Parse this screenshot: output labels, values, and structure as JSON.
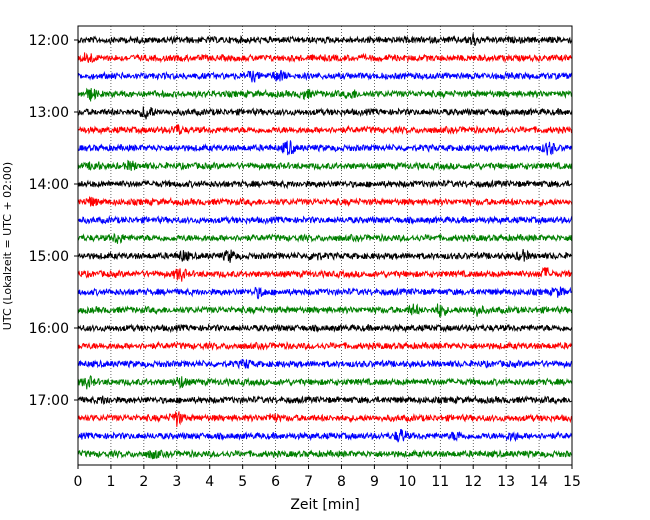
{
  "chart_data": {
    "type": "line",
    "title": "",
    "xlabel": "Zeit  [min]",
    "ylabel": "UTC (Lokalzeit = UTC + 02:00)",
    "xlim": [
      0,
      15
    ],
    "x_ticks": [
      0,
      1,
      2,
      3,
      4,
      5,
      6,
      7,
      8,
      9,
      10,
      11,
      12,
      13,
      14,
      15
    ],
    "y_tick_labels": [
      "12:00",
      "13:00",
      "14:00",
      "15:00",
      "16:00",
      "17:00"
    ],
    "trace_interval_min": 15,
    "vertical_grid": "dotted",
    "series": [
      {
        "start": "12:00",
        "color": "#000000",
        "events": [
          {
            "t": 12.0,
            "amp": 3
          }
        ]
      },
      {
        "start": "12:15",
        "color": "#ff0000",
        "events": [
          {
            "t": 0.3,
            "amp": 3
          }
        ]
      },
      {
        "start": "12:30",
        "color": "#0000ff",
        "events": [
          {
            "t": 5.3,
            "amp": 2.5
          },
          {
            "t": 6.1,
            "amp": 3
          }
        ]
      },
      {
        "start": "12:45",
        "color": "#008000",
        "events": [
          {
            "t": 0.4,
            "amp": 3
          },
          {
            "t": 6.9,
            "amp": 2
          },
          {
            "t": 8.3,
            "amp": 2
          }
        ]
      },
      {
        "start": "13:00",
        "color": "#000000",
        "events": [
          {
            "t": 2.1,
            "amp": 4
          }
        ]
      },
      {
        "start": "13:15",
        "color": "#ff0000",
        "events": [
          {
            "t": 3.0,
            "amp": 2.5
          }
        ]
      },
      {
        "start": "13:30",
        "color": "#0000ff",
        "events": [
          {
            "t": 6.4,
            "amp": 4
          },
          {
            "t": 14.3,
            "amp": 3.5
          }
        ]
      },
      {
        "start": "13:45",
        "color": "#008000",
        "events": [
          {
            "t": 0.5,
            "amp": 2
          },
          {
            "t": 1.6,
            "amp": 2
          }
        ]
      },
      {
        "start": "14:00",
        "color": "#000000",
        "events": []
      },
      {
        "start": "14:15",
        "color": "#ff0000",
        "events": [
          {
            "t": 0.4,
            "amp": 2
          }
        ]
      },
      {
        "start": "14:30",
        "color": "#0000ff",
        "events": []
      },
      {
        "start": "14:45",
        "color": "#008000",
        "events": [
          {
            "t": 1.2,
            "amp": 2.5
          }
        ]
      },
      {
        "start": "15:00",
        "color": "#000000",
        "events": [
          {
            "t": 3.2,
            "amp": 2.5
          },
          {
            "t": 4.6,
            "amp": 3
          },
          {
            "t": 7.2,
            "amp": 2
          },
          {
            "t": 13.5,
            "amp": 2.5
          }
        ]
      },
      {
        "start": "15:15",
        "color": "#ff0000",
        "events": [
          {
            "t": 3.1,
            "amp": 3.5
          },
          {
            "t": 14.2,
            "amp": 3
          }
        ]
      },
      {
        "start": "15:30",
        "color": "#0000ff",
        "events": [
          {
            "t": 5.5,
            "amp": 2.5
          },
          {
            "t": 14.6,
            "amp": 2
          }
        ]
      },
      {
        "start": "15:45",
        "color": "#008000",
        "events": [
          {
            "t": 10.2,
            "amp": 2.5
          },
          {
            "t": 11.0,
            "amp": 3.5
          },
          {
            "t": 12.1,
            "amp": 2.5
          }
        ]
      },
      {
        "start": "16:00",
        "color": "#000000",
        "events": []
      },
      {
        "start": "16:15",
        "color": "#ff0000",
        "events": []
      },
      {
        "start": "16:30",
        "color": "#0000ff",
        "events": [
          {
            "t": 5.1,
            "amp": 2
          }
        ]
      },
      {
        "start": "16:45",
        "color": "#008000",
        "events": [
          {
            "t": 0.3,
            "amp": 3
          },
          {
            "t": 3.1,
            "amp": 3
          }
        ]
      },
      {
        "start": "17:00",
        "color": "#000000",
        "events": [
          {
            "t": 0.8,
            "amp": 1.5
          }
        ]
      },
      {
        "start": "17:15",
        "color": "#ff0000",
        "events": [
          {
            "t": 3.0,
            "amp": 4
          },
          {
            "t": 5.9,
            "amp": 2
          }
        ]
      },
      {
        "start": "17:30",
        "color": "#0000ff",
        "events": [
          {
            "t": 9.8,
            "amp": 3.5
          },
          {
            "t": 11.5,
            "amp": 2
          },
          {
            "t": 13.2,
            "amp": 2
          }
        ]
      },
      {
        "start": "17:45",
        "color": "#008000",
        "events": [
          {
            "t": 2.3,
            "amp": 2
          }
        ]
      }
    ]
  }
}
